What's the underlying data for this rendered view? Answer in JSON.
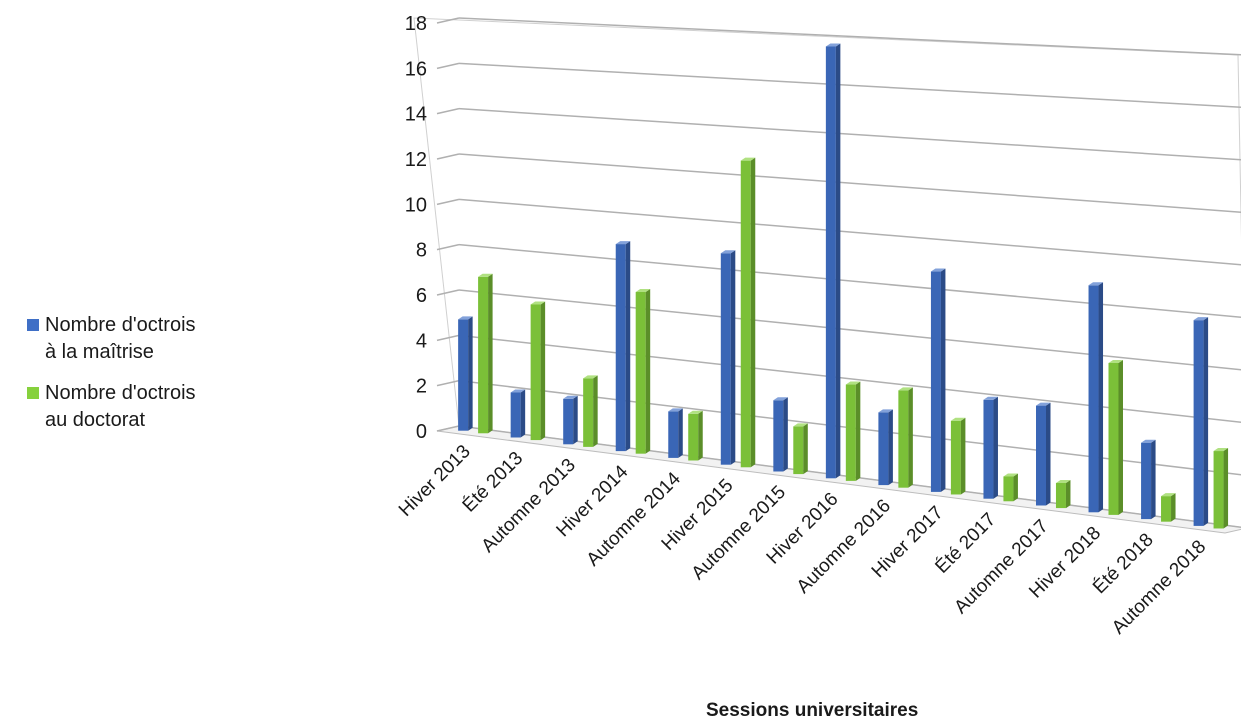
{
  "chart_data": {
    "type": "bar",
    "style": "3d-clustered-column",
    "categories": [
      "Hiver 2013",
      "Été 2013",
      "Automne 2013",
      "Hiver 2014",
      "Automne 2014",
      "Hiver 2015",
      "Automne 2015",
      "Hiver 2016",
      "Automne 2016",
      "Hiver 2017",
      "Été 2017",
      "Automne 2017",
      "Hiver 2018",
      "Été 2018",
      "Automne 2018"
    ],
    "series": [
      {
        "name": "Nombre d'octrois\nà la maîtrise",
        "color": "#3f6fc6",
        "values": [
          5,
          2,
          2,
          9,
          2,
          9,
          3,
          18,
          3,
          9,
          4,
          4,
          9,
          3,
          8
        ]
      },
      {
        "name": "Nombre d'octrois\nau doctorat",
        "color": "#86d13d",
        "values": [
          7,
          6,
          3,
          7,
          2,
          13,
          2,
          4,
          4,
          3,
          1,
          1,
          6,
          1,
          3
        ]
      }
    ],
    "xlabel": "Sessions universitaires",
    "ylabel": "",
    "ylim": [
      0,
      18
    ],
    "yticks": [
      0,
      2,
      4,
      6,
      8,
      10,
      12,
      14,
      16,
      18
    ],
    "grid": true,
    "legend": "left"
  }
}
